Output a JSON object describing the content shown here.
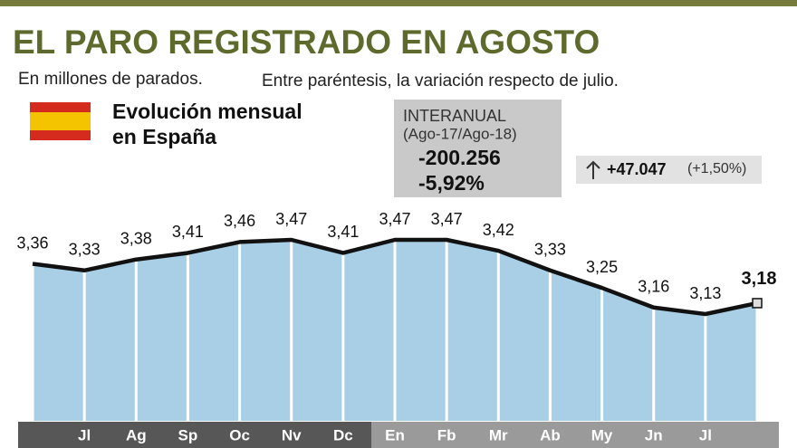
{
  "chart_data": {
    "type": "line",
    "title": "EL PARO REGISTRADO EN AGOSTO",
    "subtitle": "En millones de parados.",
    "note": "Entre paréntesis, la variación respecto de julio.",
    "legend_title": [
      "Evolución mensual",
      "en España"
    ],
    "interanual": {
      "title": "INTERANUAL",
      "period": "(Ago-17/Ago-18)",
      "absolute": "-200.256",
      "percent": "-5,92%"
    },
    "monthly_change": {
      "absolute": "+47.047",
      "percent": "(+1,50%)"
    },
    "categories": [
      null,
      "Jl",
      "Ag",
      "Sp",
      "Oc",
      "Nv",
      "Dc",
      "En",
      "Fb",
      "Mr",
      "Ab",
      "My",
      "Jn",
      "Jl",
      null
    ],
    "values": [
      3.36,
      3.33,
      3.38,
      3.41,
      3.46,
      3.47,
      3.41,
      3.47,
      3.47,
      3.42,
      3.33,
      3.25,
      3.16,
      3.13,
      3.18
    ],
    "value_labels": [
      "3,36",
      "3,33",
      "3,38",
      "3,41",
      "3,46",
      "3,47",
      "3,41",
      "3,47",
      "3,47",
      "3,42",
      "3,33",
      "3,25",
      "3,16",
      "3,13",
      "3,18"
    ],
    "color": "#111111",
    "fill_color": "#a9cfe6"
  }
}
